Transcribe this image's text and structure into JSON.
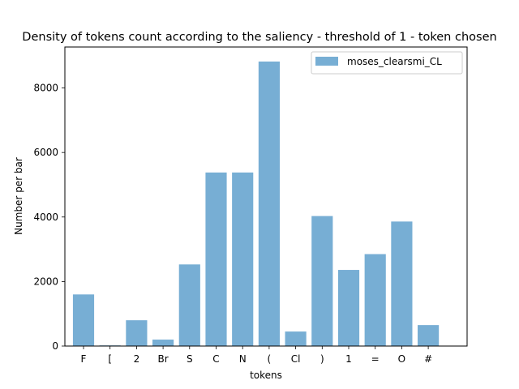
{
  "chart_data": {
    "type": "bar",
    "title": "Density of tokens count according to the saliency - threshold of 1 - token chosen",
    "xlabel": "tokens",
    "ylabel": "Number per bar",
    "categories": [
      "F",
      "[",
      "2",
      "Br",
      "S",
      "C",
      "N",
      "(",
      "Cl",
      ")",
      "1",
      "=",
      "O",
      "#"
    ],
    "series": [
      {
        "name": "moses_clearsmi_CL",
        "color": "#77aed4",
        "values": [
          1600,
          20,
          800,
          200,
          2530,
          5380,
          5380,
          8820,
          450,
          4030,
          2360,
          2850,
          3860,
          650
        ]
      }
    ],
    "ylim": [
      0,
      9270
    ],
    "yticks": [
      0,
      2000,
      4000,
      6000,
      8000
    ],
    "grid": false,
    "legend_position": "top-right"
  }
}
